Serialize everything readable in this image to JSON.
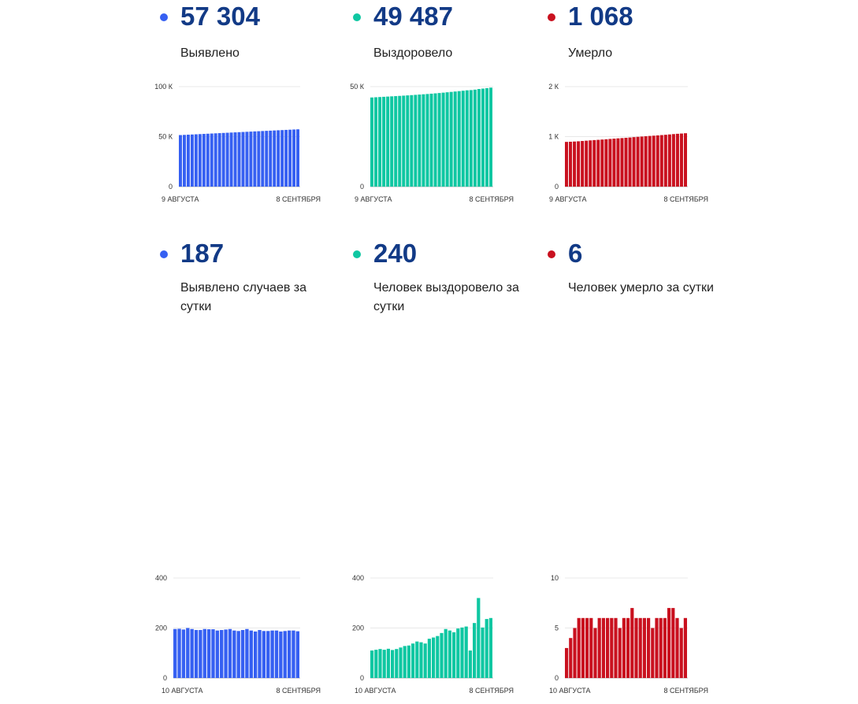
{
  "cards": [
    {
      "value": "57 304",
      "label": "Выявлено",
      "color": "#3660f2"
    },
    {
      "value": "49 487",
      "label": "Выздоровело",
      "color": "#0fc7a2"
    },
    {
      "value": "1 068",
      "label": "Умерло",
      "color": "#c9111f"
    },
    {
      "value": "187",
      "label": "Выявлено случаев за сутки",
      "color": "#3660f2"
    },
    {
      "value": "240",
      "label": "Человек выздоровело за сутки",
      "color": "#0fc7a2"
    },
    {
      "value": "6",
      "label": "Человек умерло за сутки",
      "color": "#c9111f"
    }
  ],
  "chart_data": [
    {
      "type": "bar",
      "color": "#3660f2",
      "ylim": [
        0,
        100000
      ],
      "yticks": [
        0,
        50000,
        100000
      ],
      "ytick_labels": [
        "0",
        "50 К",
        "100 К"
      ],
      "x_labels": [
        "9 АВГУСТА",
        "8 СЕНТЯБРЯ"
      ],
      "grid": true,
      "values": [
        51548,
        51744,
        51941,
        52135,
        52335,
        52531,
        52723,
        52915,
        53111,
        53306,
        53501,
        53691,
        53883,
        54077,
        54273,
        54463,
        54651,
        54843,
        55039,
        55229,
        55415,
        55607,
        55795,
        55983,
        56173,
        56363,
        56549,
        56737,
        56927,
        57117,
        57304
      ]
    },
    {
      "type": "bar",
      "color": "#0fc7a2",
      "ylim": [
        0,
        50000
      ],
      "yticks": [
        0,
        50000
      ],
      "ytick_labels": [
        "0",
        "50 К"
      ],
      "x_labels": [
        "9 АВГУСТА",
        "8 СЕНТЯБРЯ"
      ],
      "grid": true,
      "values": [
        44575,
        44685,
        44798,
        44914,
        45027,
        45144,
        45256,
        45372,
        45494,
        45622,
        45752,
        45890,
        46036,
        46179,
        46317,
        46474,
        46636,
        46804,
        46984,
        47180,
        47370,
        47553,
        47751,
        47953,
        48159,
        48269,
        48489,
        48809,
        49011,
        49247,
        49487
      ]
    },
    {
      "type": "bar",
      "color": "#c9111f",
      "ylim": [
        0,
        2000
      ],
      "yticks": [
        0,
        1000,
        2000
      ],
      "ytick_labels": [
        "0",
        "1 К",
        "2 К"
      ],
      "x_labels": [
        "9 АВГУСТА",
        "8 СЕНТЯБРЯ"
      ],
      "grid": true,
      "values": [
        895,
        898,
        902,
        907,
        913,
        919,
        925,
        931,
        936,
        942,
        948,
        954,
        960,
        966,
        971,
        977,
        983,
        990,
        996,
        1002,
        1008,
        1014,
        1019,
        1025,
        1031,
        1037,
        1044,
        1051,
        1057,
        1062,
        1068
      ]
    },
    {
      "type": "bar",
      "color": "#3660f2",
      "ylim": [
        0,
        400
      ],
      "yticks": [
        0,
        200,
        400
      ],
      "ytick_labels": [
        "0",
        "200",
        "400"
      ],
      "x_labels": [
        "10 АВГУСТА",
        "8 СЕНТЯБРЯ"
      ],
      "grid": true,
      "values": [
        196,
        197,
        194,
        200,
        196,
        192,
        192,
        196,
        195,
        195,
        190,
        192,
        194,
        196,
        190,
        188,
        192,
        196,
        190,
        186,
        192,
        188,
        188,
        190,
        190,
        186,
        188,
        190,
        190,
        187
      ]
    },
    {
      "type": "bar",
      "color": "#0fc7a2",
      "ylim": [
        0,
        400
      ],
      "yticks": [
        0,
        200,
        400
      ],
      "ytick_labels": [
        "0",
        "200",
        "400"
      ],
      "x_labels": [
        "10 АВГУСТА",
        "8 СЕНТЯБРЯ"
      ],
      "grid": true,
      "values": [
        110,
        113,
        116,
        113,
        117,
        112,
        116,
        122,
        128,
        130,
        138,
        146,
        143,
        138,
        157,
        162,
        168,
        180,
        196,
        190,
        183,
        198,
        202,
        206,
        110,
        220,
        320,
        202,
        236,
        240
      ]
    },
    {
      "type": "bar",
      "color": "#c9111f",
      "ylim": [
        0,
        10
      ],
      "yticks": [
        0,
        5,
        10
      ],
      "ytick_labels": [
        "0",
        "5",
        "10"
      ],
      "x_labels": [
        "10 АВГУСТА",
        "8 СЕНТЯБРЯ"
      ],
      "grid": true,
      "values": [
        3,
        4,
        5,
        6,
        6,
        6,
        6,
        5,
        6,
        6,
        6,
        6,
        6,
        5,
        6,
        6,
        7,
        6,
        6,
        6,
        6,
        5,
        6,
        6,
        6,
        7,
        7,
        6,
        5,
        6
      ]
    }
  ]
}
